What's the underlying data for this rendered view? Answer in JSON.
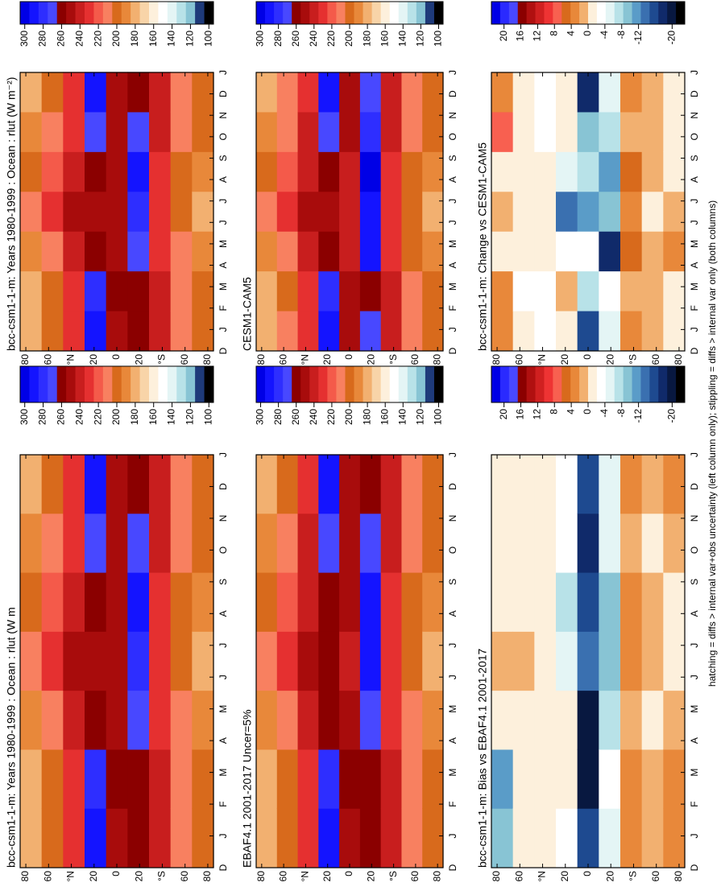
{
  "chart_data": [
    {
      "type": "contour",
      "title": "bcc-csm1-1-m: Years 1980-1999 : Ocean : rlut (W m",
      "categories": [
        "D",
        "J",
        "F",
        "M",
        "A",
        "M",
        "J",
        "J",
        "A",
        "S",
        "O",
        "N",
        "D",
        "J"
      ],
      "ylim": [
        -85,
        85
      ],
      "yticks": [
        80,
        60,
        {
          "value": 40,
          "label": "°N"
        },
        {
          "value": 20,
          "label": "20"
        },
        0,
        {
          "value": -20,
          "label": "20"
        },
        {
          "value": -40,
          "label": "°S"
        },
        {
          "value": -60,
          "label": "60"
        },
        {
          "value": -80,
          "label": "80"
        }
      ],
      "values": [
        [
          185,
          180,
          195,
          215,
          205,
          190,
          185
        ],
        [
          205,
          200,
          215,
          230,
          220,
          210,
          205
        ],
        [
          230,
          230,
          240,
          250,
          245,
          235,
          230
        ],
        [
          290,
          285,
          265,
          255,
          260,
          275,
          290
        ],
        [
          255,
          262,
          255,
          248,
          250,
          255,
          255
        ],
        [
          265,
          262,
          270,
          285,
          288,
          270,
          265
        ],
        [
          240,
          238,
          235,
          232,
          235,
          238,
          240
        ],
        [
          215,
          212,
          208,
          205,
          205,
          210,
          215
        ],
        [
          205,
          200,
          190,
          180,
          190,
          200,
          205
        ]
      ],
      "colorbar": {
        "lim": [
          95,
          305
        ],
        "ticks": [
          300,
          280,
          260,
          240,
          220,
          200,
          180,
          160,
          140,
          120,
          100
        ],
        "colors": [
          "#0000e6",
          "#1414ff",
          "#2e2eff",
          "#4848ff",
          "#8b0000",
          "#a80c0c",
          "#c81e1e",
          "#e53030",
          "#f45a4a",
          "#f88060",
          "#d86a1c",
          "#e8883a",
          "#f2b070",
          "#f8d4a8",
          "#fdf0dc",
          "#ffffff",
          "#e4f5f5",
          "#b8e2e8",
          "#88c4d4",
          "#1e3a7a",
          "#000000"
        ]
      }
    },
    {
      "type": "contour",
      "title": "EBAF4.1 2001-2017 Uncer=5%",
      "categories": [
        "D",
        "J",
        "F",
        "M",
        "A",
        "M",
        "J",
        "J",
        "A",
        "S",
        "O",
        "N",
        "D",
        "J"
      ],
      "ylim": [
        -85,
        85
      ],
      "yticks": [
        80,
        60,
        {
          "value": 40,
          "label": "°N"
        },
        {
          "value": 20,
          "label": "20"
        },
        0,
        {
          "value": -20,
          "label": "20"
        },
        {
          "value": -40,
          "label": "°S"
        },
        {
          "value": -60,
          "label": "60"
        },
        {
          "value": -80,
          "label": "80"
        }
      ],
      "values": [
        [
          180,
          178,
          190,
          210,
          205,
          188,
          180
        ],
        [
          205,
          202,
          215,
          228,
          220,
          210,
          205
        ],
        [
          232,
          232,
          240,
          252,
          245,
          236,
          232
        ],
        [
          292,
          285,
          262,
          256,
          258,
          272,
          292
        ],
        [
          252,
          258,
          250,
          245,
          248,
          252,
          252
        ],
        [
          262,
          260,
          275,
          292,
          295,
          272,
          262
        ],
        [
          238,
          236,
          234,
          232,
          234,
          236,
          238
        ],
        [
          215,
          212,
          208,
          205,
          205,
          210,
          215
        ],
        [
          202,
          198,
          190,
          182,
          190,
          198,
          202
        ]
      ],
      "colorbar": {
        "lim": [
          95,
          305
        ],
        "ticks": [
          300,
          280,
          260,
          240,
          220,
          200,
          180,
          160,
          140,
          120,
          100
        ],
        "colors": [
          "#0000e6",
          "#1414ff",
          "#2e2eff",
          "#4848ff",
          "#8b0000",
          "#a80c0c",
          "#c81e1e",
          "#e53030",
          "#f45a4a",
          "#f88060",
          "#d86a1c",
          "#e8883a",
          "#f2b070",
          "#f8d4a8",
          "#fdf0dc",
          "#ffffff",
          "#e4f5f5",
          "#b8e2e8",
          "#88c4d4",
          "#1e3a7a",
          "#000000"
        ]
      }
    },
    {
      "type": "contour",
      "title": "bcc-csm1-1-m: Bias vs EBAF4.1 2001-2017",
      "categories": [
        "D",
        "J",
        "F",
        "M",
        "A",
        "M",
        "J",
        "J",
        "A",
        "S",
        "O",
        "N",
        "D",
        "J"
      ],
      "ylim": [
        -85,
        85
      ],
      "yticks": [
        80,
        60,
        {
          "value": 40,
          "label": "°N"
        },
        {
          "value": 20,
          "label": "20"
        },
        0,
        {
          "value": -20,
          "label": "20"
        },
        {
          "value": -40,
          "label": "°S"
        },
        {
          "value": -60,
          "label": "60"
        },
        {
          "value": -80,
          "label": "80"
        }
      ],
      "values": [
        [
          -10,
          -12,
          -2,
          2,
          -2,
          0,
          -2
        ],
        [
          0,
          -2,
          0,
          2,
          0,
          0,
          0
        ],
        [
          -2,
          -2,
          0,
          -2,
          0,
          -2,
          -2
        ],
        [
          -4,
          -2,
          -2,
          -6,
          -8,
          -4,
          -4
        ],
        [
          -16,
          -20,
          -20,
          -14,
          -16,
          -18,
          -16
        ],
        [
          -6,
          -4,
          -8,
          -10,
          -10,
          -6,
          -6
        ],
        [
          4,
          4,
          2,
          4,
          4,
          2,
          4
        ],
        [
          2,
          2,
          0,
          2,
          2,
          0,
          2
        ],
        [
          4,
          4,
          2,
          0,
          0,
          2,
          4
        ]
      ],
      "colorbar": {
        "lim": [
          -23,
          23
        ],
        "ticks": [
          20,
          16,
          12,
          8,
          4,
          0,
          -4,
          -8,
          -12,
          -20
        ],
        "colors": [
          "#0000e6",
          "#2a2aff",
          "#4848ff",
          "#8b0000",
          "#b01010",
          "#d02020",
          "#ee3333",
          "#f86050",
          "#d86a1c",
          "#e8883a",
          "#f2b070",
          "#fdf0dc",
          "#ffffff",
          "#e4f5f5",
          "#b8e2e8",
          "#88c4d4",
          "#5a9cc8",
          "#3a70b0",
          "#1e4a90",
          "#102a6a",
          "#081840",
          "#000000"
        ]
      }
    },
    {
      "type": "contour",
      "title": "bcc-csm1-1-m: Years 1980-1999 : Ocean : rlut (W m⁻²)",
      "categories": [
        "D",
        "J",
        "F",
        "M",
        "A",
        "M",
        "J",
        "J",
        "A",
        "S",
        "O",
        "N",
        "D",
        "J"
      ],
      "ylim": [
        -85,
        85
      ],
      "yticks": [
        80,
        60,
        {
          "value": 40,
          "label": "°N"
        },
        {
          "value": 20,
          "label": "20"
        },
        0,
        {
          "value": -20,
          "label": "20"
        },
        {
          "value": -40,
          "label": "°S"
        },
        {
          "value": -60,
          "label": "60"
        },
        {
          "value": -80,
          "label": "80"
        }
      ],
      "values": [
        [
          185,
          180,
          195,
          215,
          205,
          190,
          185
        ],
        [
          205,
          200,
          215,
          230,
          220,
          210,
          205
        ],
        [
          230,
          230,
          240,
          250,
          245,
          235,
          230
        ],
        [
          290,
          285,
          265,
          255,
          260,
          275,
          290
        ],
        [
          255,
          262,
          255,
          248,
          250,
          255,
          255
        ],
        [
          265,
          262,
          270,
          285,
          288,
          270,
          265
        ],
        [
          240,
          238,
          235,
          232,
          235,
          238,
          240
        ],
        [
          215,
          212,
          208,
          205,
          205,
          210,
          215
        ],
        [
          205,
          200,
          190,
          180,
          190,
          200,
          205
        ]
      ],
      "colorbar": {
        "lim": [
          95,
          305
        ],
        "ticks": [
          300,
          280,
          260,
          240,
          220,
          200,
          180,
          160,
          140,
          120,
          100
        ],
        "colors": [
          "#0000e6",
          "#1414ff",
          "#2e2eff",
          "#4848ff",
          "#8b0000",
          "#a80c0c",
          "#c81e1e",
          "#e53030",
          "#f45a4a",
          "#f88060",
          "#d86a1c",
          "#e8883a",
          "#f2b070",
          "#f8d4a8",
          "#fdf0dc",
          "#ffffff",
          "#e4f5f5",
          "#b8e2e8",
          "#88c4d4",
          "#1e3a7a",
          "#000000"
        ]
      }
    },
    {
      "type": "contour",
      "title": "CESM1-CAM5",
      "categories": [
        "D",
        "J",
        "F",
        "M",
        "A",
        "M",
        "J",
        "J",
        "A",
        "S",
        "O",
        "N",
        "D",
        "J"
      ],
      "ylim": [
        -85,
        85
      ],
      "yticks": [
        80,
        60,
        {
          "value": 40,
          "label": "°N"
        },
        {
          "value": 20,
          "label": "20"
        },
        0,
        {
          "value": -20,
          "label": "20"
        },
        {
          "value": -40,
          "label": "°S"
        },
        {
          "value": -60,
          "label": "60"
        },
        {
          "value": -80,
          "label": "80"
        }
      ],
      "values": [
        [
          180,
          178,
          195,
          212,
          205,
          188,
          180
        ],
        [
          208,
          205,
          215,
          230,
          222,
          212,
          208
        ],
        [
          235,
          235,
          242,
          252,
          245,
          238,
          235
        ],
        [
          292,
          285,
          260,
          255,
          258,
          275,
          292
        ],
        [
          250,
          255,
          245,
          240,
          245,
          250,
          250
        ],
        [
          268,
          265,
          290,
          295,
          298,
          280,
          268
        ],
        [
          238,
          236,
          234,
          232,
          234,
          236,
          238
        ],
        [
          212,
          210,
          205,
          202,
          204,
          208,
          212
        ],
        [
          205,
          200,
          190,
          182,
          190,
          200,
          205
        ]
      ],
      "colorbar": {
        "lim": [
          95,
          305
        ],
        "ticks": [
          300,
          280,
          260,
          240,
          220,
          200,
          180,
          160,
          140,
          120,
          100
        ],
        "colors": [
          "#0000e6",
          "#1414ff",
          "#2e2eff",
          "#4848ff",
          "#8b0000",
          "#a80c0c",
          "#c81e1e",
          "#e53030",
          "#f45a4a",
          "#f88060",
          "#d86a1c",
          "#e8883a",
          "#f2b070",
          "#f8d4a8",
          "#fdf0dc",
          "#ffffff",
          "#e4f5f5",
          "#b8e2e8",
          "#88c4d4",
          "#1e3a7a",
          "#000000"
        ]
      }
    },
    {
      "type": "contour",
      "title": "bcc-csm1-1-m: Change vs CESM1-CAM5",
      "categories": [
        "D",
        "J",
        "F",
        "M",
        "A",
        "M",
        "J",
        "J",
        "A",
        "S",
        "O",
        "N",
        "D",
        "J"
      ],
      "ylim": [
        -85,
        85
      ],
      "yticks": [
        80,
        60,
        {
          "value": 40,
          "label": "°N"
        },
        {
          "value": 20,
          "label": "20"
        },
        0,
        {
          "value": -20,
          "label": "20"
        },
        {
          "value": -40,
          "label": "°S"
        },
        {
          "value": -60,
          "label": "60"
        },
        {
          "value": -80,
          "label": "80"
        }
      ],
      "values": [
        [
          4,
          4,
          0,
          2,
          0,
          8,
          4
        ],
        [
          -2,
          -4,
          0,
          0,
          -2,
          -2,
          -2
        ],
        [
          -4,
          -4,
          -2,
          -2,
          0,
          -4,
          -4
        ],
        [
          0,
          2,
          -4,
          -14,
          -6,
          -2,
          0
        ],
        [
          -16,
          -8,
          -4,
          -12,
          -8,
          -10,
          -18
        ],
        [
          -6,
          -4,
          -18,
          -10,
          -12,
          -8,
          -6
        ],
        [
          4,
          2,
          6,
          4,
          6,
          2,
          4
        ],
        [
          2,
          2,
          2,
          0,
          2,
          2,
          2
        ],
        [
          -2,
          0,
          4,
          2,
          0,
          0,
          -2
        ]
      ],
      "colorbar": {
        "lim": [
          -23,
          23
        ],
        "ticks": [
          20,
          16,
          12,
          8,
          4,
          0,
          -4,
          -8,
          -12,
          -20
        ],
        "colors": [
          "#0000e6",
          "#2a2aff",
          "#4848ff",
          "#8b0000",
          "#b01010",
          "#d02020",
          "#ee3333",
          "#f86050",
          "#d86a1c",
          "#e8883a",
          "#f2b070",
          "#fdf0dc",
          "#ffffff",
          "#e4f5f5",
          "#b8e2e8",
          "#88c4d4",
          "#5a9cc8",
          "#3a70b0",
          "#1e4a90",
          "#102a6a",
          "#081840",
          "#000000"
        ]
      }
    }
  ],
  "footnote": "hatching = diffs > internal var+obs uncertainty (left column only); stippling = diffs > internal var only (both columns)"
}
